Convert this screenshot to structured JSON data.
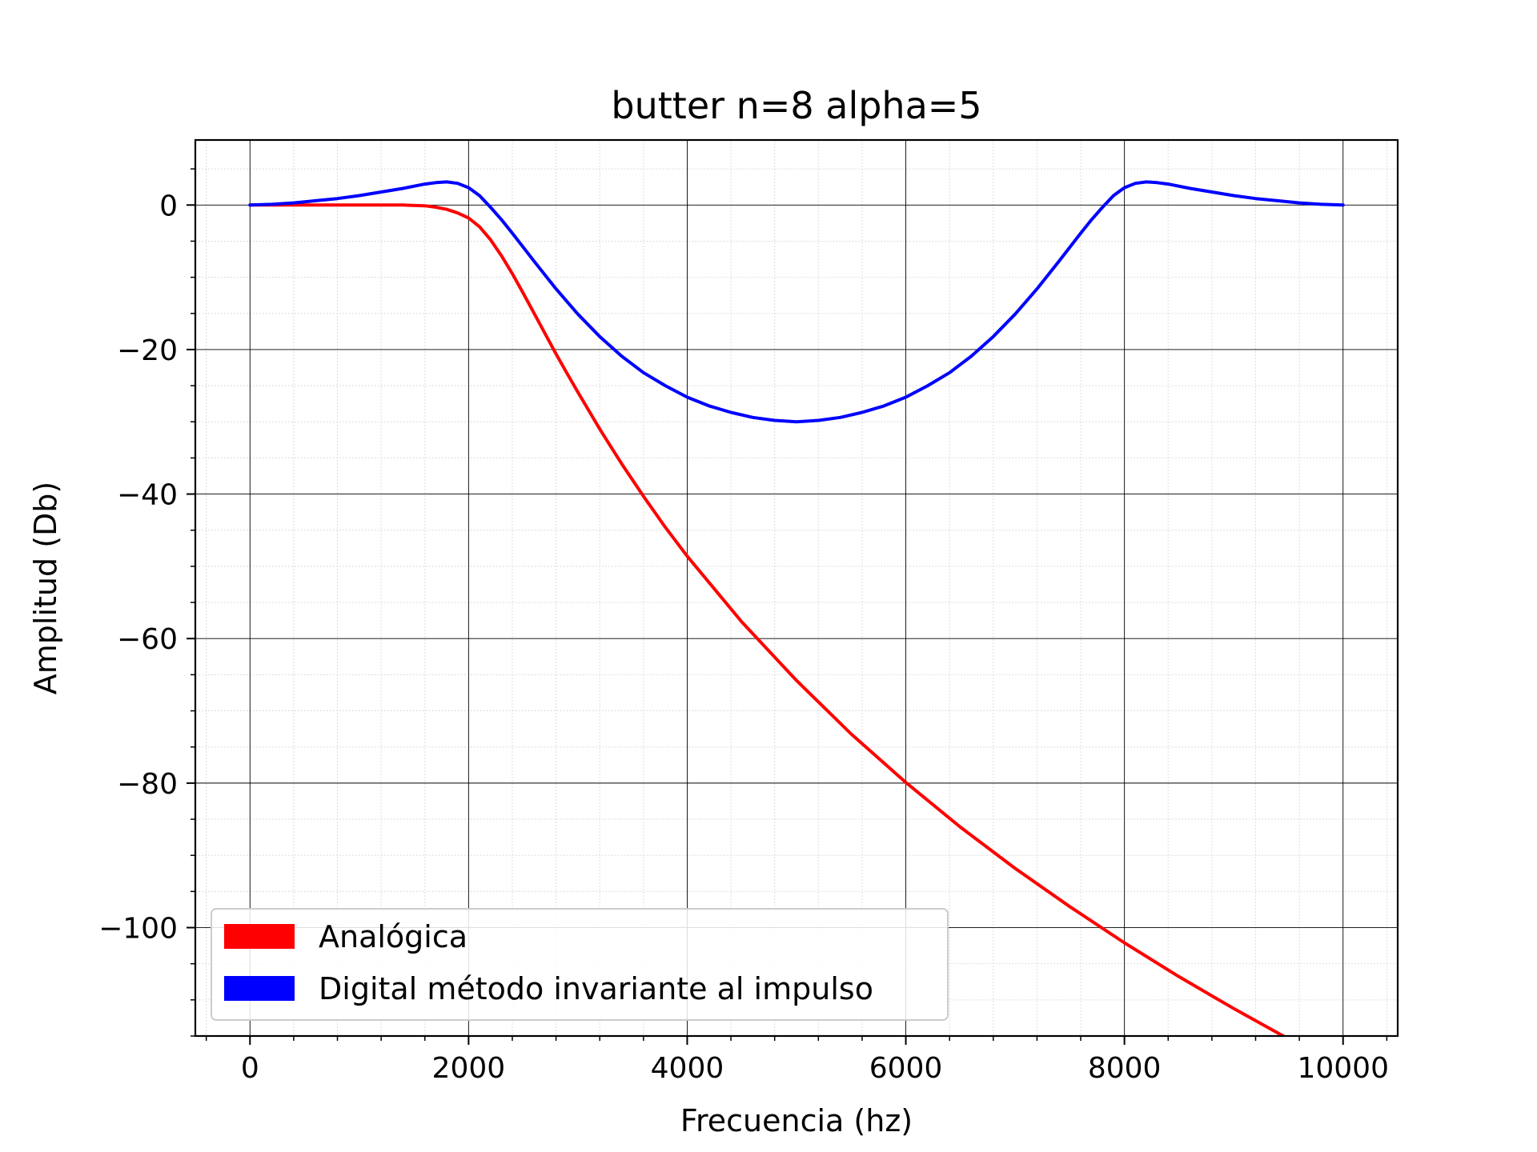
{
  "chart_data": {
    "type": "line",
    "title": "butter n=8 alpha=5",
    "xlabel": "Frecuencia (hz)",
    "ylabel": "Amplitud (Db)",
    "xlim": [
      -500,
      10500
    ],
    "ylim": [
      -115,
      9
    ],
    "x_ticks": [
      0,
      2000,
      4000,
      6000,
      8000,
      10000
    ],
    "x_tick_labels": [
      "0",
      "2000",
      "4000",
      "6000",
      "8000",
      "10000"
    ],
    "y_ticks": [
      0,
      -20,
      -40,
      -60,
      -80,
      -100
    ],
    "y_tick_labels": [
      "0",
      "−20",
      "−40",
      "−60",
      "−80",
      "−100"
    ],
    "grid": "major and minor",
    "legend_position": "lower-left",
    "series": [
      {
        "name": "Analógica",
        "color": "#ff0000",
        "x": [
          0,
          500,
          1000,
          1200,
          1400,
          1600,
          1700,
          1800,
          1900,
          2000,
          2100,
          2200,
          2300,
          2400,
          2500,
          2600,
          2700,
          2800,
          2900,
          3000,
          3200,
          3400,
          3600,
          3800,
          4000,
          4500,
          5000,
          5500,
          6000,
          6500,
          7000,
          7500,
          8000,
          8500,
          9000,
          9500,
          10000
        ],
        "y": [
          0,
          0,
          0,
          0,
          0,
          -0.1,
          -0.3,
          -0.6,
          -1.1,
          -1.8,
          -3.0,
          -4.8,
          -7.0,
          -9.5,
          -12.2,
          -15.0,
          -17.8,
          -20.6,
          -23.3,
          -25.9,
          -31.0,
          -35.8,
          -40.3,
          -44.6,
          -48.6,
          -57.7,
          -65.8,
          -73.2,
          -79.9,
          -86.1,
          -91.8,
          -97.1,
          -102.1,
          -106.8,
          -111.2,
          -115.4,
          -119.3
        ]
      },
      {
        "name": "Digital método invariante al impulso",
        "color": "#0000ff",
        "x": [
          0,
          200,
          400,
          600,
          800,
          1000,
          1200,
          1400,
          1600,
          1700,
          1800,
          1900,
          2000,
          2100,
          2200,
          2300,
          2400,
          2600,
          2800,
          3000,
          3200,
          3400,
          3600,
          3800,
          4000,
          4200,
          4400,
          4600,
          4800,
          5000,
          5200,
          5400,
          5600,
          5800,
          6000,
          6200,
          6400,
          6600,
          6800,
          7000,
          7200,
          7400,
          7600,
          7700,
          7800,
          7900,
          8000,
          8100,
          8200,
          8300,
          8400,
          8600,
          8800,
          9000,
          9200,
          9400,
          9600,
          9800,
          10000
        ],
        "y": [
          0,
          0.1,
          0.3,
          0.6,
          0.9,
          1.3,
          1.8,
          2.3,
          2.9,
          3.1,
          3.2,
          3.0,
          2.4,
          1.3,
          -0.3,
          -2.0,
          -3.9,
          -7.8,
          -11.6,
          -15.1,
          -18.2,
          -20.9,
          -23.2,
          -25.0,
          -26.6,
          -27.8,
          -28.7,
          -29.4,
          -29.8,
          -30.0,
          -29.8,
          -29.4,
          -28.7,
          -27.8,
          -26.6,
          -25.0,
          -23.2,
          -20.9,
          -18.2,
          -15.1,
          -11.6,
          -7.8,
          -3.9,
          -2.0,
          -0.3,
          1.3,
          2.4,
          3.0,
          3.2,
          3.1,
          2.9,
          2.3,
          1.8,
          1.3,
          0.9,
          0.6,
          0.3,
          0.1,
          0
        ]
      }
    ]
  }
}
